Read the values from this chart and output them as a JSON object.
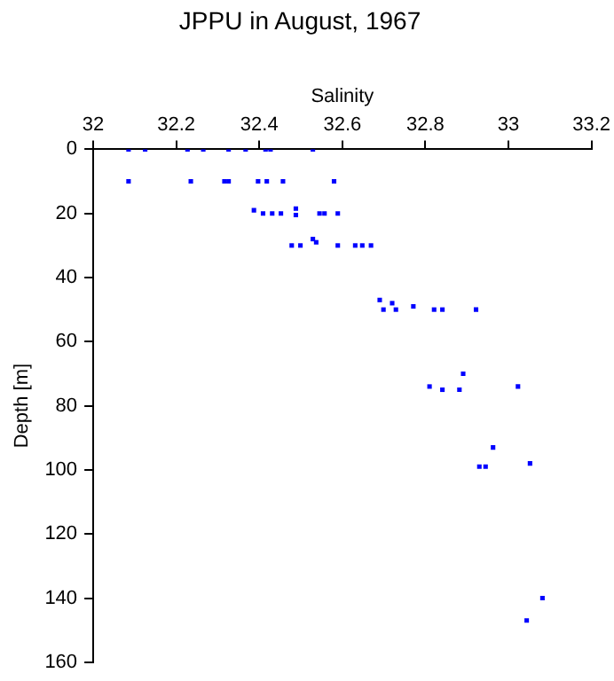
{
  "chart_data": {
    "type": "scatter",
    "title": "JPPU in August, 1967",
    "xlabel": "Salinity",
    "ylabel": "Depth [m]",
    "xlim": [
      32,
      33.2
    ],
    "xticks": [
      32,
      32.2,
      32.4,
      32.6,
      32.8,
      33,
      33.2
    ],
    "ylim": [
      160,
      0
    ],
    "yticks": [
      0,
      20,
      40,
      60,
      80,
      100,
      120,
      140,
      160
    ],
    "grid": false,
    "legend": false,
    "marker": "square",
    "series": [
      {
        "color": "#0000ff",
        "x": [
          32.085,
          32.125,
          32.227,
          32.265,
          32.326,
          32.367,
          32.415,
          32.427,
          32.529,
          32.085,
          32.235,
          32.316,
          32.326,
          32.397,
          32.418,
          32.457,
          32.58,
          32.387,
          32.409,
          32.431,
          32.452,
          32.488,
          32.488,
          32.545,
          32.557,
          32.589,
          32.478,
          32.499,
          32.529,
          32.537,
          32.589,
          32.631,
          32.648,
          32.669,
          32.69,
          32.699,
          32.729,
          32.72,
          32.771,
          32.821,
          32.841,
          32.922,
          32.891,
          32.81,
          33.023,
          32.841,
          32.882,
          32.963,
          32.93,
          32.945,
          33.052,
          33.082,
          33.044
        ],
        "values": [
          0,
          0,
          0,
          0,
          0,
          0,
          0,
          0,
          0,
          10,
          10,
          10,
          10,
          10,
          10,
          10,
          10,
          19,
          20,
          20,
          20,
          18.5,
          20.5,
          20,
          20,
          20,
          30,
          30,
          28,
          29,
          30,
          30,
          30,
          30,
          47,
          50,
          50,
          48,
          49,
          50,
          50,
          50,
          70,
          74,
          74,
          75,
          75,
          93,
          99,
          99,
          98,
          140,
          147
        ]
      }
    ]
  }
}
